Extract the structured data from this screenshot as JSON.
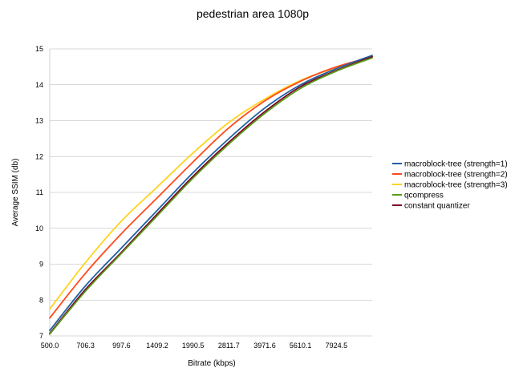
{
  "chart_data": {
    "type": "line",
    "title": "pedestrian area 1080p",
    "xlabel": "Bitrate (kbps)",
    "ylabel": "Average SSIM (db)",
    "ylim": [
      7,
      15
    ],
    "grid": "horizontal",
    "legend_position": "right",
    "x_ticks": [
      "500.0",
      "706.3",
      "997.6",
      "1409.2",
      "1990.5",
      "2811.7",
      "3971.6",
      "5610.1",
      "7924.5"
    ],
    "x": [
      500,
      706.3,
      997.6,
      1409.2,
      1990.5,
      2811.7,
      3971.6,
      5610.1,
      7924.5,
      10500
    ],
    "series": [
      {
        "name": "macroblock-tree (strength=1)",
        "color": "#1f5fa3",
        "values": [
          7.15,
          8.4,
          9.45,
          10.5,
          11.55,
          12.5,
          13.35,
          14.0,
          14.45,
          14.82
        ]
      },
      {
        "name": "macroblock-tree (strength=2)",
        "color": "#ff4a1c",
        "values": [
          7.5,
          8.75,
          9.85,
          10.85,
          11.85,
          12.8,
          13.55,
          14.1,
          14.5,
          14.78
        ]
      },
      {
        "name": "macroblock-tree (strength=3)",
        "color": "#ffd320",
        "values": [
          7.75,
          9.05,
          10.2,
          11.15,
          12.1,
          12.95,
          13.6,
          14.12,
          14.48,
          14.75
        ]
      },
      {
        "name": "qcompress",
        "color": "#579d1c",
        "values": [
          7.05,
          8.25,
          9.3,
          10.35,
          11.4,
          12.35,
          13.2,
          13.9,
          14.38,
          14.75
        ]
      },
      {
        "name": "constant quantizer",
        "color": "#7e0021",
        "values": [
          7.07,
          8.3,
          9.33,
          10.4,
          11.45,
          12.4,
          13.25,
          13.95,
          14.4,
          14.78
        ]
      }
    ]
  }
}
